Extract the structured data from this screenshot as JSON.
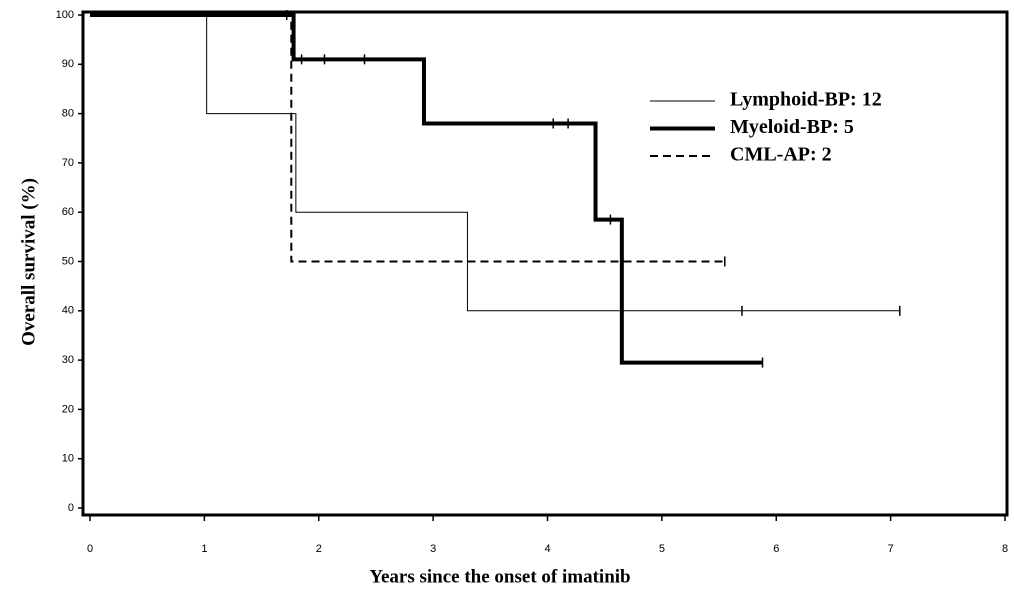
{
  "chart_data": {
    "type": "line",
    "step": true,
    "xlabel": "Years since the onset of imatinib",
    "ylabel": "Overall survival (%)",
    "xlim": [
      0,
      8
    ],
    "xticks": [
      0,
      1,
      2,
      3,
      4,
      5,
      6,
      7,
      8
    ],
    "ylim": [
      0,
      100
    ],
    "yticks": [
      0,
      10,
      20,
      30,
      40,
      50,
      60,
      70,
      80,
      90,
      100
    ],
    "grid": false,
    "legend": "upper right",
    "series": [
      {
        "name": "Lymphoid-BP: 12",
        "color": "#000000",
        "width": 1,
        "dash": false,
        "x": [
          0,
          1.02,
          1.8,
          3.3,
          7.08
        ],
        "values": [
          100,
          80,
          60,
          40,
          40
        ],
        "censored": {
          "x": [
            5.7,
            7.08
          ],
          "values": [
            40,
            40
          ]
        }
      },
      {
        "name": "Myeloid-BP: 5",
        "color": "#000000",
        "width": 4,
        "dash": false,
        "x": [
          0,
          1.78,
          2.92,
          4.42,
          4.65,
          5.88
        ],
        "values": [
          100,
          91,
          78,
          58.5,
          29.5,
          29.5
        ],
        "censored": {
          "x": [
            1.72,
            1.85,
            2.05,
            2.4,
            4.05,
            4.18,
            4.55,
            5.88
          ],
          "values": [
            100,
            91,
            91,
            91,
            78,
            78,
            58.5,
            29.5
          ]
        }
      },
      {
        "name": "CML-AP: 2",
        "color": "#000000",
        "width": 2,
        "dash": true,
        "x": [
          0,
          1.76,
          5.55
        ],
        "values": [
          100,
          50,
          50
        ],
        "censored": {
          "x": [
            5.55
          ],
          "values": [
            50
          ]
        }
      }
    ]
  }
}
